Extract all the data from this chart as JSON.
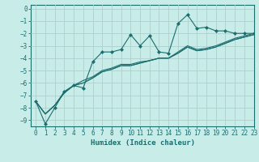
{
  "xlabel": "Humidex (Indice chaleur)",
  "xlim": [
    -0.5,
    23
  ],
  "ylim": [
    -9.5,
    0.3
  ],
  "bg_color": "#c8ece8",
  "line_color": "#1a6e6e",
  "grid_color": "#b0cece",
  "x": [
    0,
    1,
    2,
    3,
    4,
    5,
    6,
    7,
    8,
    9,
    10,
    11,
    12,
    13,
    14,
    15,
    16,
    17,
    18,
    19,
    20,
    21,
    22,
    23
  ],
  "y_marked": [
    -7.5,
    -9.3,
    -8.0,
    -6.7,
    -6.2,
    -6.4,
    -4.3,
    -3.5,
    -3.5,
    -3.3,
    -2.1,
    -3.0,
    -2.2,
    -3.5,
    -3.6,
    -1.2,
    -0.5,
    -1.6,
    -1.5,
    -1.8,
    -1.8,
    -2.0,
    -2.0,
    -2.0
  ],
  "y_line2": [
    -7.5,
    -8.5,
    -7.8,
    -6.7,
    -6.2,
    -5.8,
    -5.5,
    -5.0,
    -4.8,
    -4.5,
    -4.5,
    -4.3,
    -4.2,
    -4.0,
    -4.0,
    -3.5,
    -3.0,
    -3.3,
    -3.2,
    -3.0,
    -2.7,
    -2.4,
    -2.2,
    -2.0
  ],
  "y_line3": [
    -7.5,
    -8.5,
    -7.8,
    -6.8,
    -6.2,
    -6.0,
    -5.6,
    -5.1,
    -4.9,
    -4.6,
    -4.6,
    -4.4,
    -4.2,
    -4.0,
    -4.0,
    -3.6,
    -3.1,
    -3.4,
    -3.3,
    -3.1,
    -2.8,
    -2.5,
    -2.3,
    -2.1
  ],
  "y_line4": [
    -7.5,
    -8.5,
    -7.8,
    -6.8,
    -6.2,
    -6.0,
    -5.6,
    -5.1,
    -4.9,
    -4.6,
    -4.6,
    -4.4,
    -4.2,
    -4.0,
    -4.0,
    -3.6,
    -3.1,
    -3.4,
    -3.3,
    -3.1,
    -2.8,
    -2.5,
    -2.3,
    -2.1
  ],
  "xticks": [
    0,
    1,
    2,
    3,
    4,
    5,
    6,
    7,
    8,
    9,
    10,
    11,
    12,
    13,
    14,
    15,
    16,
    17,
    18,
    19,
    20,
    21,
    22,
    23
  ],
  "yticks": [
    0,
    -1,
    -2,
    -3,
    -4,
    -5,
    -6,
    -7,
    -8,
    -9
  ],
  "tick_fontsize": 5.5,
  "xlabel_fontsize": 6.5
}
